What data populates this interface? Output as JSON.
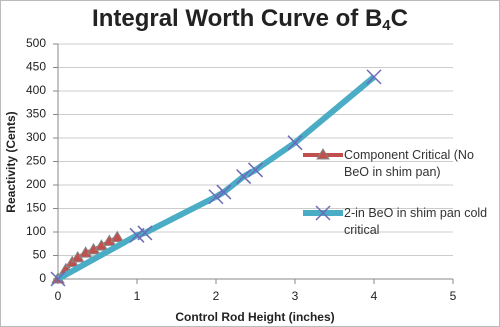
{
  "chart_data": {
    "type": "line",
    "title": "Integral Worth Curve of B",
    "title_subscript": "4",
    "title_suffix": "C",
    "x_label": "Control Rod Height (inches)",
    "y_label": "Reactivity (Cents)",
    "xlim": [
      0,
      5
    ],
    "xticks": [
      0,
      1,
      2,
      3,
      4,
      5
    ],
    "ylim": [
      0,
      500
    ],
    "yticks": [
      0,
      50,
      100,
      150,
      200,
      250,
      300,
      350,
      400,
      450,
      500
    ],
    "grid": true,
    "series": [
      {
        "name": "Component Critical (No BeO in shim pan)",
        "color": "#c0504d",
        "marker": "triangle",
        "x": [
          0,
          0.1,
          0.18,
          0.25,
          0.35,
          0.45,
          0.55,
          0.65,
          0.75
        ],
        "values": [
          0,
          20,
          35,
          45,
          55,
          62,
          70,
          80,
          88
        ]
      },
      {
        "name": "2-in BeO in shim pan cold critical",
        "color": "#4bacc6",
        "marker": "x",
        "x": [
          0,
          1,
          1.1,
          2,
          2.1,
          2.35,
          2.5,
          3,
          4
        ],
        "values": [
          0,
          93,
          98,
          175,
          185,
          218,
          232,
          290,
          430
        ]
      }
    ]
  }
}
